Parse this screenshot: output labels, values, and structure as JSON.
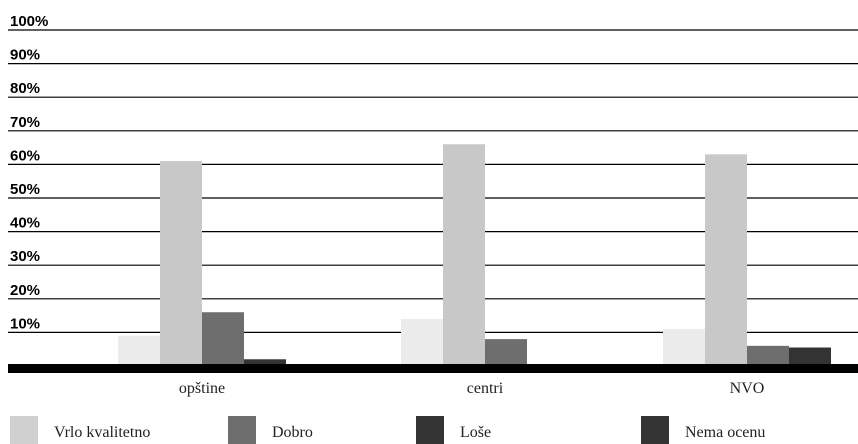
{
  "chart_data": {
    "type": "bar",
    "categories": [
      "opštine",
      "centri",
      "NVO"
    ],
    "series": [
      {
        "name": "Vrlo kvalitetno",
        "values": [
          9,
          14,
          11
        ],
        "color": "#ebebeb"
      },
      {
        "name": "Dobro",
        "values": [
          61,
          66,
          63
        ],
        "color": "#c8c8c8"
      },
      {
        "name": "Loše",
        "values": [
          16,
          8,
          6
        ],
        "color": "#6e6e6e"
      },
      {
        "name": "Nema ocenu",
        "values": [
          2,
          0,
          5.5
        ],
        "color": "#333333"
      }
    ],
    "legend": [
      {
        "label": "Vrlo kvalitetno",
        "color": "#d0d0d0"
      },
      {
        "label": "Dobro",
        "color": "#6e6e6e"
      },
      {
        "label": "Loše",
        "color": "#333333"
      },
      {
        "label": "Nema ocenu",
        "color": "#333333"
      }
    ],
    "y_ticks": [
      "10%",
      "20%",
      "30%",
      "40%",
      "50%",
      "60%",
      "70%",
      "80%",
      "90%",
      "100%"
    ],
    "ylim": [
      0,
      100
    ],
    "grid": true,
    "legend_position": "bottom",
    "title": "",
    "xlabel": "",
    "ylabel": ""
  }
}
